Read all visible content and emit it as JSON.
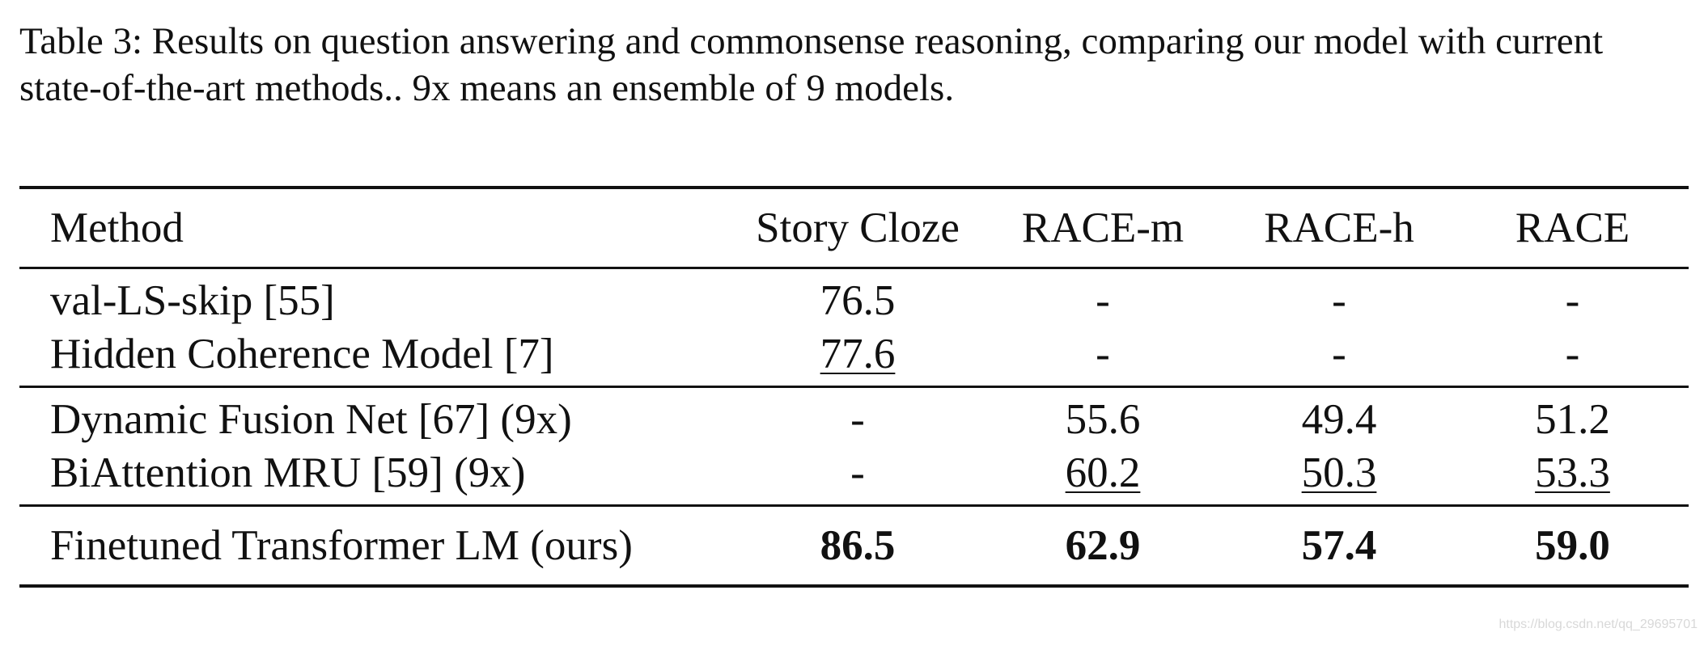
{
  "caption": "Table 3: Results on question answering and commonsense reasoning, comparing our model with current state-of-the-art methods.. 9x means an ensemble of 9 models.",
  "table": {
    "headers": [
      "Method",
      "Story Cloze",
      "RACE-m",
      "RACE-h",
      "RACE"
    ],
    "groups": [
      {
        "rows": [
          {
            "method": "val-LS-skip [55]",
            "story_cloze": "76.5",
            "race_m": "-",
            "race_h": "-",
            "race": "-"
          },
          {
            "method": "Hidden Coherence Model [7]",
            "story_cloze": "77.6",
            "race_m": "-",
            "race_h": "-",
            "race": "-"
          }
        ]
      },
      {
        "rows": [
          {
            "method": "Dynamic Fusion Net [67] (9x)",
            "story_cloze": "-",
            "race_m": "55.6",
            "race_h": "49.4",
            "race": "51.2"
          },
          {
            "method": "BiAttention MRU [59] (9x)",
            "story_cloze": "-",
            "race_m": "60.2",
            "race_h": "50.3",
            "race": "53.3"
          }
        ]
      },
      {
        "rows": [
          {
            "method": "Finetuned Transformer LM (ours)",
            "story_cloze": "86.5",
            "race_m": "62.9",
            "race_h": "57.4",
            "race": "59.0"
          }
        ]
      }
    ],
    "underlined_cells": [
      "Hidden Coherence Model [7]: Story Cloze",
      "BiAttention MRU [59] (9x): RACE-m",
      "BiAttention MRU [59] (9x): RACE-h",
      "BiAttention MRU [59] (9x): RACE"
    ],
    "bold_row": "Finetuned Transformer LM (ours)"
  },
  "watermark": "https://blog.csdn.net/qq_29695701"
}
